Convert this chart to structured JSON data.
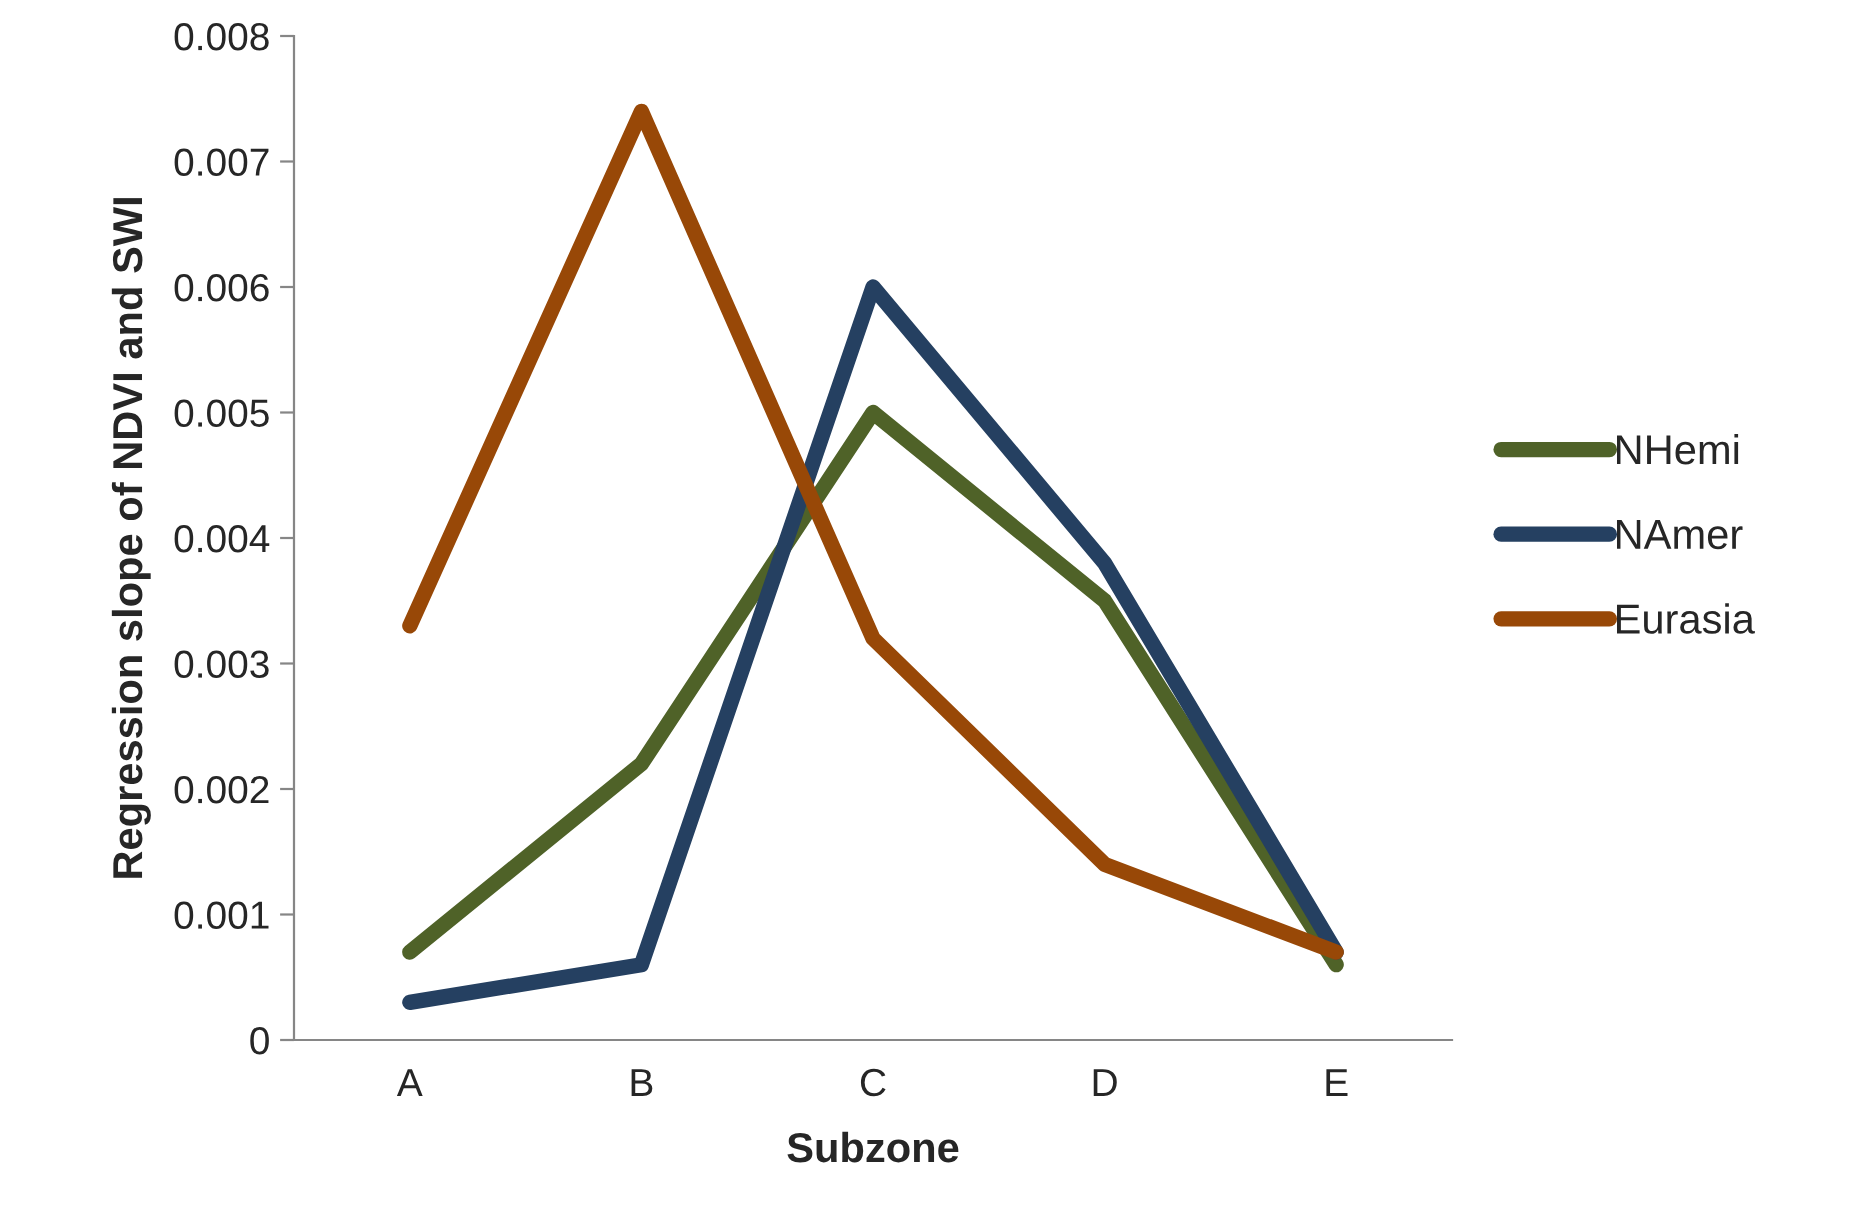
{
  "chart_data": {
    "type": "line",
    "xlabel": "Subzone",
    "ylabel": "Regression slope of NDVI and SWI",
    "categories": [
      "A",
      "B",
      "C",
      "D",
      "E"
    ],
    "series": [
      {
        "name": "NHemi",
        "color": "#4f6228",
        "values": [
          0.0007,
          0.0022,
          0.005,
          0.0035,
          0.0006
        ]
      },
      {
        "name": "NAmer",
        "color": "#254061",
        "values": [
          0.0003,
          0.0006,
          0.006,
          0.0038,
          0.0007
        ]
      },
      {
        "name": "Eurasia",
        "color": "#984807",
        "values": [
          0.0033,
          0.0074,
          0.0032,
          0.0014,
          0.0007
        ]
      }
    ],
    "ylim": [
      0,
      0.008
    ],
    "yticks": [
      {
        "value": 0,
        "label": "0"
      },
      0.001,
      0.002,
      0.003,
      0.004,
      0.005,
      0.006,
      0.007,
      0.008
    ],
    "grid": false,
    "legend": "right",
    "marker": "none",
    "line_style": "solid"
  }
}
